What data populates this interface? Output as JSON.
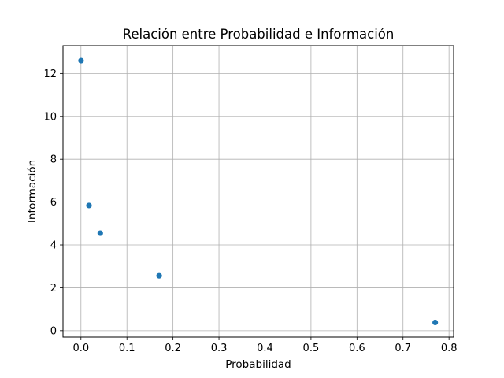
{
  "chart_data": {
    "type": "scatter",
    "title": "Relación entre Probabilidad e Información",
    "xlabel": "Probabilidad",
    "ylabel": "Información",
    "xlim": [
      -0.039,
      0.81
    ],
    "ylim": [
      -0.3,
      13.3
    ],
    "x_ticks": [
      0.0,
      0.1,
      0.2,
      0.3,
      0.4,
      0.5,
      0.6,
      0.7,
      0.8
    ],
    "x_tick_labels": [
      "0.0",
      "0.1",
      "0.2",
      "0.3",
      "0.4",
      "0.5",
      "0.6",
      "0.7",
      "0.8"
    ],
    "y_ticks": [
      0,
      2,
      4,
      6,
      8,
      10,
      12
    ],
    "y_tick_labels": [
      "0",
      "2",
      "4",
      "6",
      "8",
      "10",
      "12"
    ],
    "grid": true,
    "points": [
      {
        "x": 0.0002,
        "y": 12.6
      },
      {
        "x": 0.0175,
        "y": 5.84
      },
      {
        "x": 0.042,
        "y": 4.55
      },
      {
        "x": 0.17,
        "y": 2.56
      },
      {
        "x": 0.77,
        "y": 0.38
      }
    ],
    "marker_color": "#1f77b4"
  }
}
